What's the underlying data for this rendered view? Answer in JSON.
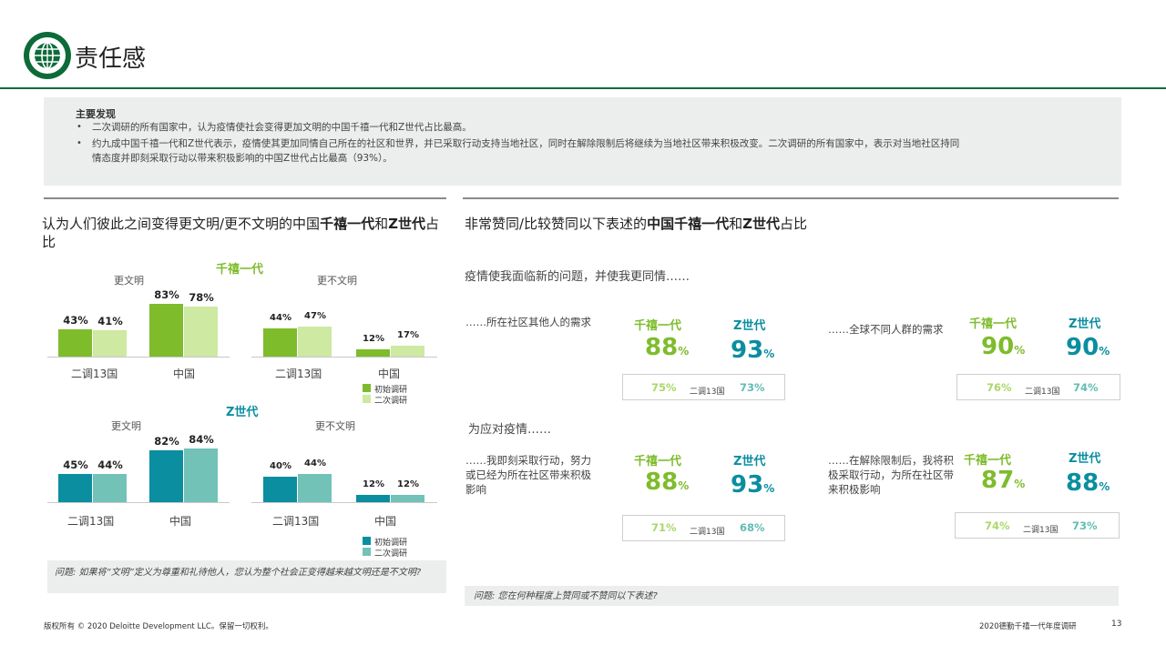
{
  "header": {
    "title": "责任感"
  },
  "findings": {
    "heading": "主要发现",
    "bullets": [
      "二次调研的所有国家中，认为疫情使社会变得更加文明的中国千禧一代和Z世代占比最高。",
      "约九成中国千禧一代和Z世代表示，疫情使其更加同情自己所在的社区和世界，并已采取行动支持当地社区，同时在解除限制后将继续为当地社区带来积极改变。二次调研的所有国家中，表示对当地社区持同",
      "情态度并即刻采取行动以带来积极影响的中国Z世代占比最高（93%）。"
    ]
  },
  "left": {
    "title_pre": "认为人们彼此之间变得更文明/更不文明的中国",
    "title_b1": "千禧一代",
    "title_mid": "和",
    "title_b2": "Z世代",
    "title_post": "占比",
    "groups": [
      {
        "heading": "千禧一代",
        "col_more": "更文明",
        "col_less": "更不文明",
        "categories": [
          "二调13国",
          "中国"
        ],
        "legend": [
          "初始调研",
          "二次调研"
        ]
      },
      {
        "heading": "Z世代",
        "col_more": "更文明",
        "col_less": "更不文明",
        "categories": [
          "二调13国",
          "中国"
        ],
        "legend": [
          "初始调研",
          "二次调研"
        ]
      }
    ],
    "question": "问题: 如果将“文明”定义为尊重和礼待他人，您认为整个社会正变得越来越文明还是不文明?"
  },
  "chart_data": [
    {
      "type": "bar",
      "title": "千禧一代 更文明",
      "categories": [
        "二调13国",
        "中国"
      ],
      "series": [
        {
          "name": "初始调研",
          "values": [
            43,
            83
          ]
        },
        {
          "name": "二次调研",
          "values": [
            41,
            78
          ]
        }
      ]
    },
    {
      "type": "bar",
      "title": "千禧一代 更不文明",
      "categories": [
        "二调13国",
        "中国"
      ],
      "series": [
        {
          "name": "初始调研",
          "values": [
            44,
            12
          ]
        },
        {
          "name": "二次调研",
          "values": [
            47,
            17
          ]
        }
      ]
    },
    {
      "type": "bar",
      "title": "Z世代 更文明",
      "categories": [
        "二调13国",
        "中国"
      ],
      "series": [
        {
          "name": "初始调研",
          "values": [
            45,
            82
          ]
        },
        {
          "name": "二次调研",
          "values": [
            44,
            84
          ]
        }
      ]
    },
    {
      "type": "bar",
      "title": "Z世代 更不文明",
      "categories": [
        "二调13国",
        "中国"
      ],
      "series": [
        {
          "name": "初始调研",
          "values": [
            40,
            12
          ]
        },
        {
          "name": "二次调研",
          "values": [
            44,
            12
          ]
        }
      ]
    }
  ],
  "right": {
    "title_pre": "非常赞同/比较赞同以下表述的",
    "title_b1": "中国千禧一代",
    "title_mid": "和",
    "title_b2": "Z世代",
    "title_post": "占比",
    "section1": "疫情使我面临新的问题，并使我更同情……",
    "section2": "为应对疫情……",
    "label_mill": "千禧一代",
    "label_genz": "Z世代",
    "cmp_label": "二调13国",
    "pct": "%",
    "items": [
      {
        "statement": "……所在社区其他人的需求",
        "mill": "88",
        "genz": "93",
        "cmp_mill": "75%",
        "cmp_genz": "73%"
      },
      {
        "statement": "……全球不同人群的需求",
        "mill": "90",
        "genz": "90",
        "cmp_mill": "76%",
        "cmp_genz": "74%"
      },
      {
        "statement": "……我即刻采取行动，努力或已经为所在社区带来积极影响",
        "mill": "88",
        "genz": "93",
        "cmp_mill": "71%",
        "cmp_genz": "68%"
      },
      {
        "statement": "……在解除限制后，我将积极采取行动，为所在社区带来积极影响",
        "mill": "87",
        "genz": "88",
        "cmp_mill": "74%",
        "cmp_genz": "73%"
      }
    ],
    "question": "问题: 您在何种程度上赞同或不赞同以下表述?"
  },
  "footer": {
    "copyright": "版权所有 © 2020 Deloitte Development LLC。保留一切权利。",
    "report": "2020德勤千禧一代年度调研",
    "page": "13"
  },
  "colors": {
    "brand": "#0d6b3a",
    "mill_initial": "#7ebc2c",
    "mill_second": "#cde9a2",
    "genz_initial": "#0a8ea0",
    "genz_second": "#72c2b8"
  }
}
